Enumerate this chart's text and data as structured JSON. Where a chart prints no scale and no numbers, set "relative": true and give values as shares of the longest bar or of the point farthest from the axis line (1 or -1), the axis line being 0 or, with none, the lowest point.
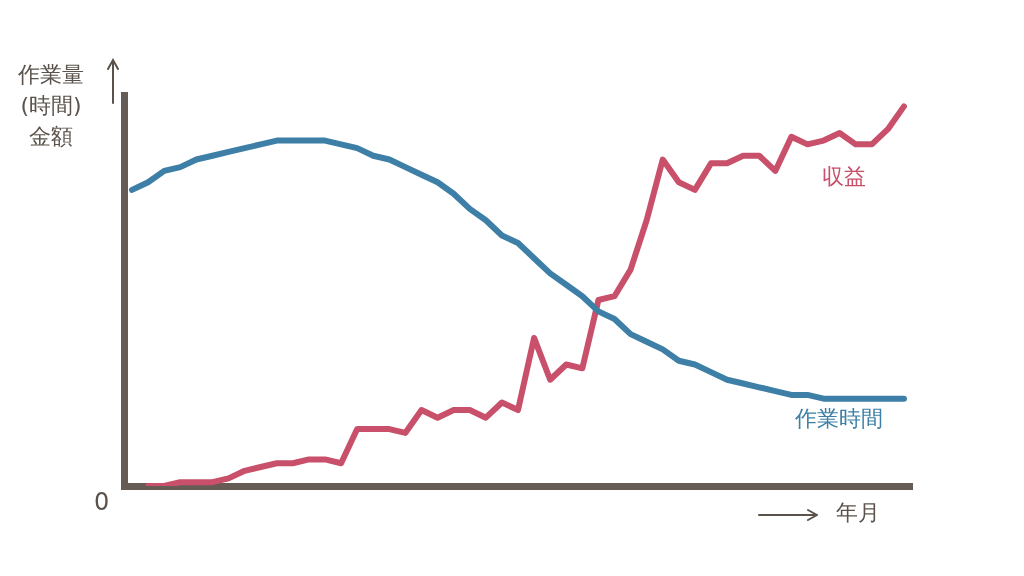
{
  "chart_data": {
    "type": "line",
    "relative": true,
    "ylabel": "作業量\n(時間)\n金額",
    "xlabel": "年月",
    "annotations": [
      "0"
    ],
    "grid": false,
    "legend": false,
    "marker": "none",
    "line_style": "solid",
    "categories": [
      null,
      null,
      null,
      null,
      null,
      null,
      null,
      null,
      null,
      null,
      null,
      null,
      null,
      null,
      null,
      null,
      null,
      null,
      null,
      null,
      null,
      null,
      null,
      null,
      null,
      null,
      null,
      null,
      null,
      null,
      null,
      null,
      null,
      null,
      null,
      null,
      null,
      null,
      null,
      null,
      null,
      null,
      null,
      null,
      null,
      null,
      null,
      null,
      null
    ],
    "series": [
      {
        "name": "作業時間",
        "color": "#3d7fa6",
        "values": [
          0.78,
          0.8,
          0.83,
          0.84,
          0.86,
          0.87,
          0.88,
          0.89,
          0.9,
          0.91,
          0.91,
          0.91,
          0.91,
          0.9,
          0.89,
          0.87,
          0.86,
          0.84,
          0.82,
          0.8,
          0.77,
          0.73,
          0.7,
          0.66,
          0.64,
          0.6,
          0.56,
          0.53,
          0.5,
          0.46,
          0.44,
          0.4,
          0.38,
          0.36,
          0.33,
          0.32,
          0.3,
          0.28,
          0.27,
          0.26,
          0.25,
          0.24,
          0.24,
          0.23,
          0.23,
          0.23,
          0.23,
          0.23,
          0.23
        ]
      },
      {
        "name": "収益",
        "color": "#c8506a",
        "values": [
          null,
          0,
          0,
          0.01,
          0.01,
          0.01,
          0.02,
          0.04,
          0.05,
          0.06,
          0.06,
          0.07,
          0.07,
          0.06,
          0.15,
          0.15,
          0.15,
          0.14,
          0.2,
          0.18,
          0.2,
          0.2,
          0.18,
          0.22,
          0.2,
          0.39,
          0.28,
          0.32,
          0.31,
          0.49,
          0.5,
          0.57,
          0.7,
          0.86,
          0.8,
          0.78,
          0.85,
          0.85,
          0.87,
          0.87,
          0.83,
          0.92,
          0.9,
          0.91,
          0.93,
          0.9,
          0.9,
          0.94,
          1
        ]
      }
    ]
  }
}
